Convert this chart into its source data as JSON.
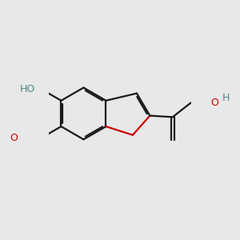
{
  "bg_color": "#e8e8e8",
  "bond_color": "#1a1a1a",
  "oxygen_color": "#cc0000",
  "heteroatom_color": "#4d8888",
  "bond_lw": 1.6,
  "dbo": 0.06,
  "figsize": [
    3.0,
    3.0
  ],
  "dpi": 100,
  "fs": 9.0,
  "xlim": [
    -2.5,
    3.0
  ],
  "ylim": [
    -2.2,
    2.0
  ]
}
